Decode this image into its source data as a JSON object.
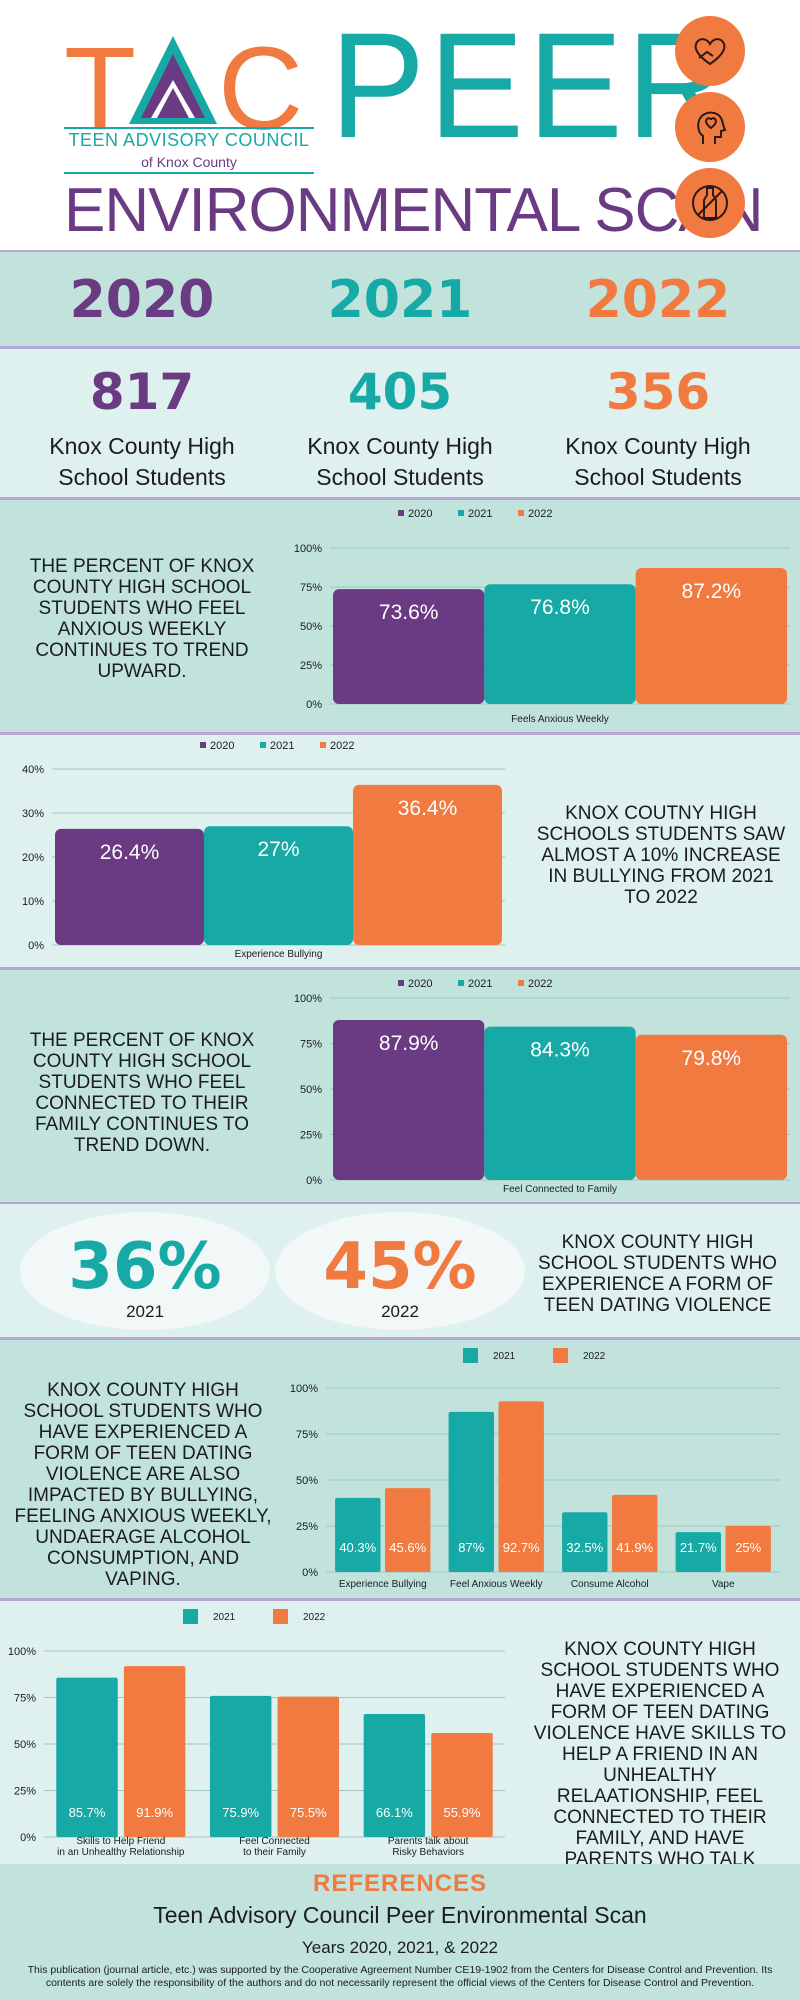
{
  "header": {
    "logo_text": "TAC",
    "logo_subtitle": "TEEN ADVISORY COUNCIL",
    "logo_county": "of Knox County",
    "title_main": "PEER",
    "title_sub": "ENVIRONMENTAL SCAN",
    "badges": [
      {
        "icon": "heart-hands-icon"
      },
      {
        "icon": "head-heart-icon"
      },
      {
        "icon": "no-bottle-icon"
      }
    ]
  },
  "colors": {
    "y2020": "#6a3b82",
    "y2021": "#17a9a5",
    "y2022": "#f07a3f",
    "grid": "#9fc7c0"
  },
  "years": {
    "y2020": "2020",
    "y2021": "2021",
    "y2022": "2022"
  },
  "counts": {
    "c2020": "817",
    "c2021": "405",
    "c2022": "356",
    "label_line1": "Knox County High",
    "label_line2": "School Students"
  },
  "statements": {
    "anxious": "THE PERCENT OF KNOX COUNTY HIGH SCHOOL STUDENTS WHO FEEL ANXIOUS WEEKLY CONTINUES TO TREND UPWARD.",
    "bullying": "KNOX COUTNY HIGH SCHOOLS STUDENTS SAW ALMOST A 10% INCREASE IN BULLYING FROM 2021 TO 2022",
    "family": "THE PERCENT OF KNOX COUNTY HIGH SCHOOL STUDENTS WHO FEEL CONNECTED TO THEIR FAMILY CONTINUES TO TREND DOWN.",
    "dating": "KNOX COUNTY HIGH SCHOOL STUDENTS WHO EXPERIENCE A FORM OF TEEN DATING VIOLENCE",
    "impacted": "KNOX COUNTY HIGH SCHOOL STUDENTS WHO HAVE EXPERIENCED A FORM OF TEEN DATING VIOLENCE ARE ALSO IMPACTED BY BULLYING, FEELING ANXIOUS WEEKLY, UNDAERAGE ALCOHOL CONSUMPTION, AND VAPING.",
    "skills": "KNOX COUNTY HIGH SCHOOL STUDENTS WHO HAVE EXPERIENCED A FORM OF TEEN DATING VIOLENCE HAVE SKILLS TO HELP A FRIEND IN AN UNHEALTHY RELAATIONSHIP, FEEL CONNECTED TO THEIR FAMILY, AND HAVE PARENTS WHO TALK ABOUT RISKY BEHAVIORS."
  },
  "dating": {
    "pct2021": "36%",
    "year2021": "2021",
    "pct2022": "45%",
    "year2022": "2022"
  },
  "chart_data": [
    {
      "id": "anxious",
      "type": "bar",
      "categories": [
        "Feels Anxious Weekly"
      ],
      "series": [
        {
          "name": "2020",
          "values": [
            73.6
          ],
          "label": "73.6%"
        },
        {
          "name": "2021",
          "values": [
            76.8
          ],
          "label": "76.8%"
        },
        {
          "name": "2022",
          "values": [
            87.2
          ],
          "label": "87.2%"
        }
      ],
      "yticks": [
        "0%",
        "25%",
        "50%",
        "75%",
        "100%"
      ],
      "ylim": [
        0,
        100
      ]
    },
    {
      "id": "bullying",
      "type": "bar",
      "categories": [
        "Experience Bullying"
      ],
      "series": [
        {
          "name": "2020",
          "values": [
            26.4
          ],
          "label": "26.4%"
        },
        {
          "name": "2021",
          "values": [
            27
          ],
          "label": "27%"
        },
        {
          "name": "2022",
          "values": [
            36.4
          ],
          "label": "36.4%"
        }
      ],
      "yticks": [
        "0%",
        "10%",
        "20%",
        "30%",
        "40%"
      ],
      "ylim": [
        0,
        40
      ]
    },
    {
      "id": "family",
      "type": "bar",
      "categories": [
        "Feel Connected to Family"
      ],
      "series": [
        {
          "name": "2020",
          "values": [
            87.9
          ],
          "label": "87.9%"
        },
        {
          "name": "2021",
          "values": [
            84.3
          ],
          "label": "84.3%"
        },
        {
          "name": "2022",
          "values": [
            79.8
          ],
          "label": "79.8%"
        }
      ],
      "yticks": [
        "0%",
        "25%",
        "50%",
        "75%",
        "100%"
      ],
      "ylim": [
        0,
        100
      ]
    },
    {
      "id": "impacted",
      "type": "bar",
      "categories": [
        "Experience Bullying",
        "Feel Anxious Weekly",
        "Consume Alcohol",
        "Vape"
      ],
      "series": [
        {
          "name": "2021",
          "values": [
            40.3,
            87,
            32.5,
            21.7
          ],
          "labels": [
            "40.3%",
            "87%",
            "32.5%",
            "21.7%"
          ]
        },
        {
          "name": "2022",
          "values": [
            45.6,
            92.7,
            41.9,
            25
          ],
          "labels": [
            "45.6%",
            "92.7%",
            "41.9%",
            "25%"
          ]
        }
      ],
      "yticks": [
        "0%",
        "25%",
        "50%",
        "75%",
        "100%"
      ],
      "ylim": [
        0,
        100
      ]
    },
    {
      "id": "skills",
      "type": "bar",
      "categories": [
        "Skills to Help Friend|in an Unhealthy Relationship",
        "Feel Connected|to their Family",
        "Parents talk about|Risky Behaviors"
      ],
      "series": [
        {
          "name": "2021",
          "values": [
            85.7,
            75.9,
            66.1
          ],
          "labels": [
            "85.7%",
            "75.9%",
            "66.1%"
          ]
        },
        {
          "name": "2022",
          "values": [
            91.9,
            75.5,
            55.9
          ],
          "labels": [
            "91.9%",
            "75.5%",
            "55.9%"
          ]
        }
      ],
      "yticks": [
        "0%",
        "25%",
        "50%",
        "75%",
        "100%"
      ],
      "ylim": [
        0,
        100
      ]
    }
  ],
  "references": {
    "title": "REFERENCES",
    "name": "Teen Advisory Council Peer Environmental Scan",
    "years": "Years 2020, 2021, & 2022",
    "note": "This publication (journal article, etc.) was supported by the Cooperative Agreement Number CE19-1902 from the Centers for Disease Control and Prevention. Its contents are solely the responsibility of the authors and do not necessarily represent the official views of the Centers for Disease Control and Prevention."
  }
}
